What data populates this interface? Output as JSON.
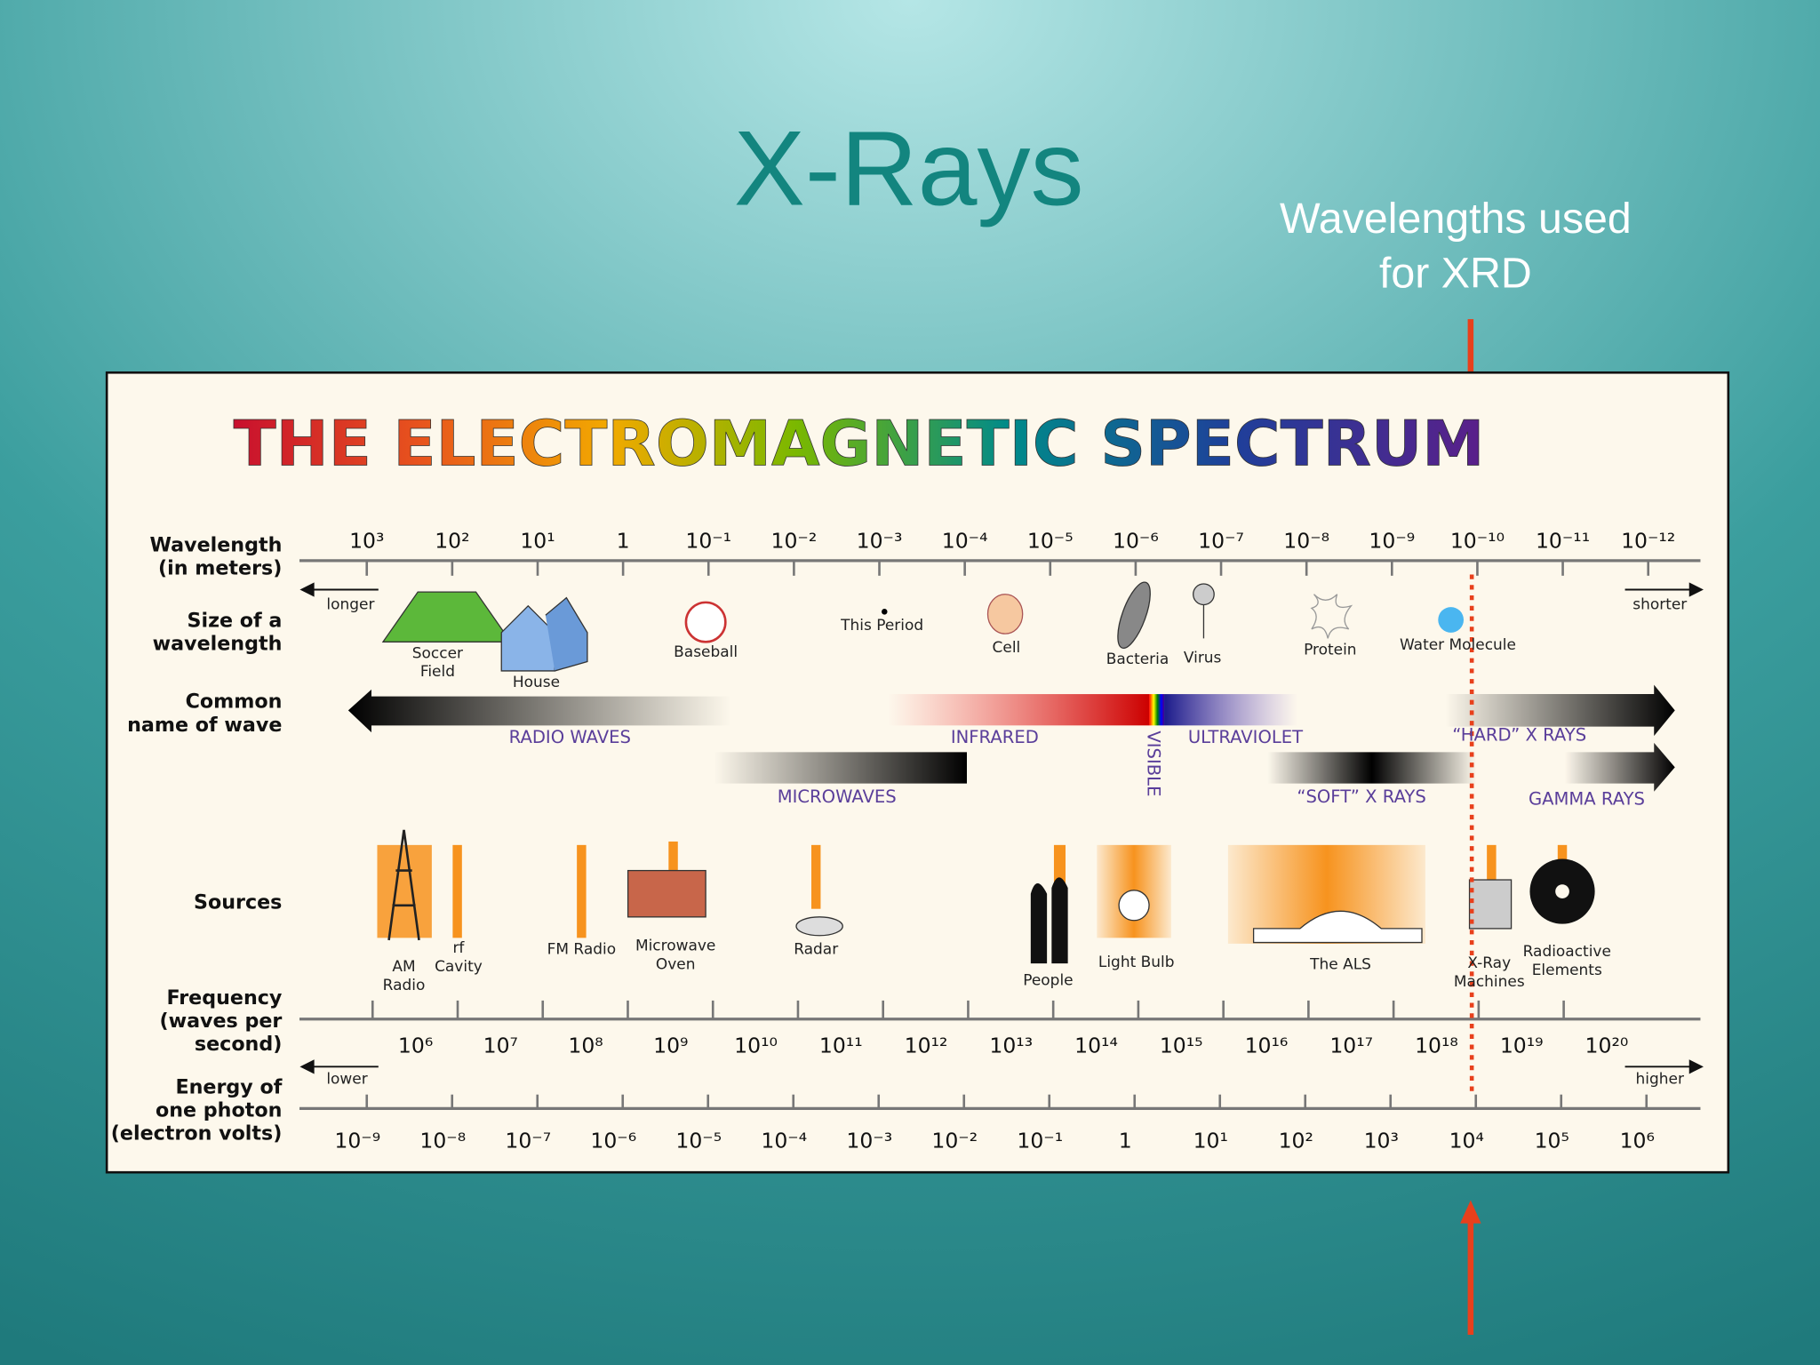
{
  "slide": {
    "title": "X-Rays",
    "annotation": [
      "Wavelengths used",
      "for XRD"
    ]
  },
  "spectrum": {
    "title": "THE ELECTROMAGNETIC SPECTRUM",
    "row_labels": {
      "wavelength": [
        "Wavelength",
        "(in meters)"
      ],
      "size": [
        "Size of a",
        "wavelength"
      ],
      "name": [
        "Common",
        "name of wave"
      ],
      "sources": [
        "Sources"
      ],
      "frequency": [
        "Frequency",
        "(waves per",
        "second)"
      ],
      "energy": [
        "Energy of",
        "one photon",
        "(electron volts)"
      ]
    },
    "wavelength_ticks": [
      "10³",
      "10²",
      "10¹",
      "1",
      "10⁻¹",
      "10⁻²",
      "10⁻³",
      "10⁻⁴",
      "10⁻⁵",
      "10⁻⁶",
      "10⁻⁷",
      "10⁻⁸",
      "10⁻⁹",
      "10⁻¹⁰",
      "10⁻¹¹",
      "10⁻¹²"
    ],
    "longer": "longer",
    "shorter": "shorter",
    "sizes": [
      [
        "Soccer",
        "Field"
      ],
      [
        "House"
      ],
      [
        "Baseball"
      ],
      [
        "This Period"
      ],
      [
        "Cell"
      ],
      [
        "Bacteria"
      ],
      [
        "Virus"
      ],
      [
        "Protein"
      ],
      [
        "Water Molecule"
      ]
    ],
    "waves": [
      "RADIO WAVES",
      "INFRARED",
      "VISIBLE",
      "ULTRAVIOLET",
      "“HARD” X RAYS",
      "MICROWAVES",
      "“SOFT” X RAYS",
      "GAMMA RAYS"
    ],
    "sources": [
      [
        "AM",
        "Radio"
      ],
      [
        "rf",
        "Cavity"
      ],
      [
        "FM Radio"
      ],
      [
        "Microwave",
        "Oven"
      ],
      [
        "Radar"
      ],
      [
        "People"
      ],
      [
        "Light Bulb"
      ],
      [
        "The ALS"
      ],
      [
        "X-Ray",
        "Machines"
      ],
      [
        "Radioactive",
        "Elements"
      ]
    ],
    "frequency_ticks": [
      "10⁶",
      "10⁷",
      "10⁸",
      "10⁹",
      "10¹⁰",
      "10¹¹",
      "10¹²",
      "10¹³",
      "10¹⁴",
      "10¹⁵",
      "10¹⁶",
      "10¹⁷",
      "10¹⁸",
      "10¹⁹",
      "10²⁰"
    ],
    "lower": "lower",
    "higher": "higher",
    "energy_ticks": [
      "10⁻⁹",
      "10⁻⁸",
      "10⁻⁷",
      "10⁻⁶",
      "10⁻⁵",
      "10⁻⁴",
      "10⁻³",
      "10⁻²",
      "10⁻¹",
      "1",
      "10¹",
      "10²",
      "10³",
      "10⁴",
      "10⁵",
      "10⁶"
    ]
  }
}
